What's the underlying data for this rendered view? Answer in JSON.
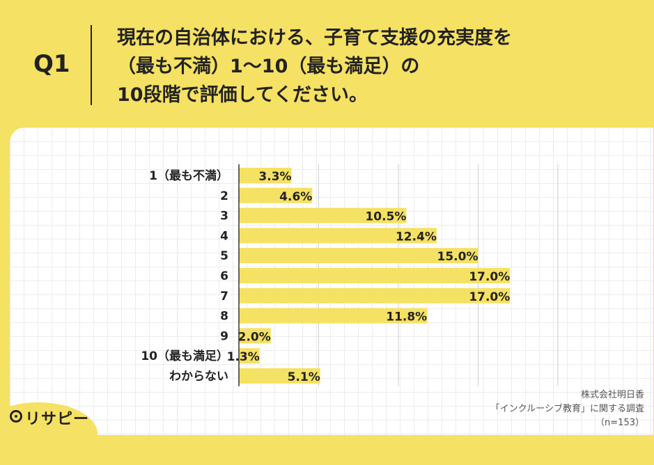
{
  "question": {
    "label": "Q1",
    "text": "現在の自治体における、子育て支援の充実度を\n（最も不満）1〜10（最も満足）の\n10段階で評価してください。"
  },
  "colors": {
    "background": "#f5e163",
    "bar": "#f5e163",
    "text": "#222222"
  },
  "chart_data": {
    "type": "bar",
    "orientation": "horizontal",
    "categories": [
      "1（最も不満）",
      "2",
      "3",
      "4",
      "5",
      "6",
      "7",
      "8",
      "9",
      "10（最も満足）",
      "わからない"
    ],
    "values": [
      3.3,
      4.6,
      10.5,
      12.4,
      15.0,
      17.0,
      17.0,
      11.8,
      2.0,
      1.3,
      5.1
    ],
    "value_labels": [
      "3.3%",
      "4.6%",
      "10.5%",
      "12.4%",
      "15.0%",
      "17.0%",
      "17.0%",
      "11.8%",
      "2.0%",
      "1.3%",
      "5.1%"
    ],
    "xlim": [
      0,
      20
    ],
    "grid": true
  },
  "footer": {
    "company": "株式会社明日香",
    "survey": "「インクルーシブ教育」に関する調査",
    "n": "（n=153）",
    "logo": "リサピー"
  }
}
